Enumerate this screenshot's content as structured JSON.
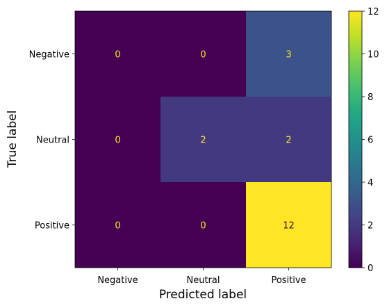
{
  "chart_data": {
    "type": "heatmap",
    "title": "",
    "xlabel": "Predicted label",
    "ylabel": "True label",
    "x_categories": [
      "Negative",
      "Neutral",
      "Positive"
    ],
    "y_categories": [
      "Negative",
      "Neutral",
      "Positive"
    ],
    "values": [
      [
        0,
        0,
        3
      ],
      [
        0,
        2,
        2
      ],
      [
        0,
        0,
        12
      ]
    ],
    "colormap": "viridis",
    "colorbar": {
      "range": [
        0,
        12
      ],
      "ticks": [
        "0",
        "2",
        "4",
        "6",
        "8",
        "10",
        "12"
      ]
    },
    "text_colors": {
      "on_dark": "#fde725",
      "on_light": "#440154"
    }
  }
}
